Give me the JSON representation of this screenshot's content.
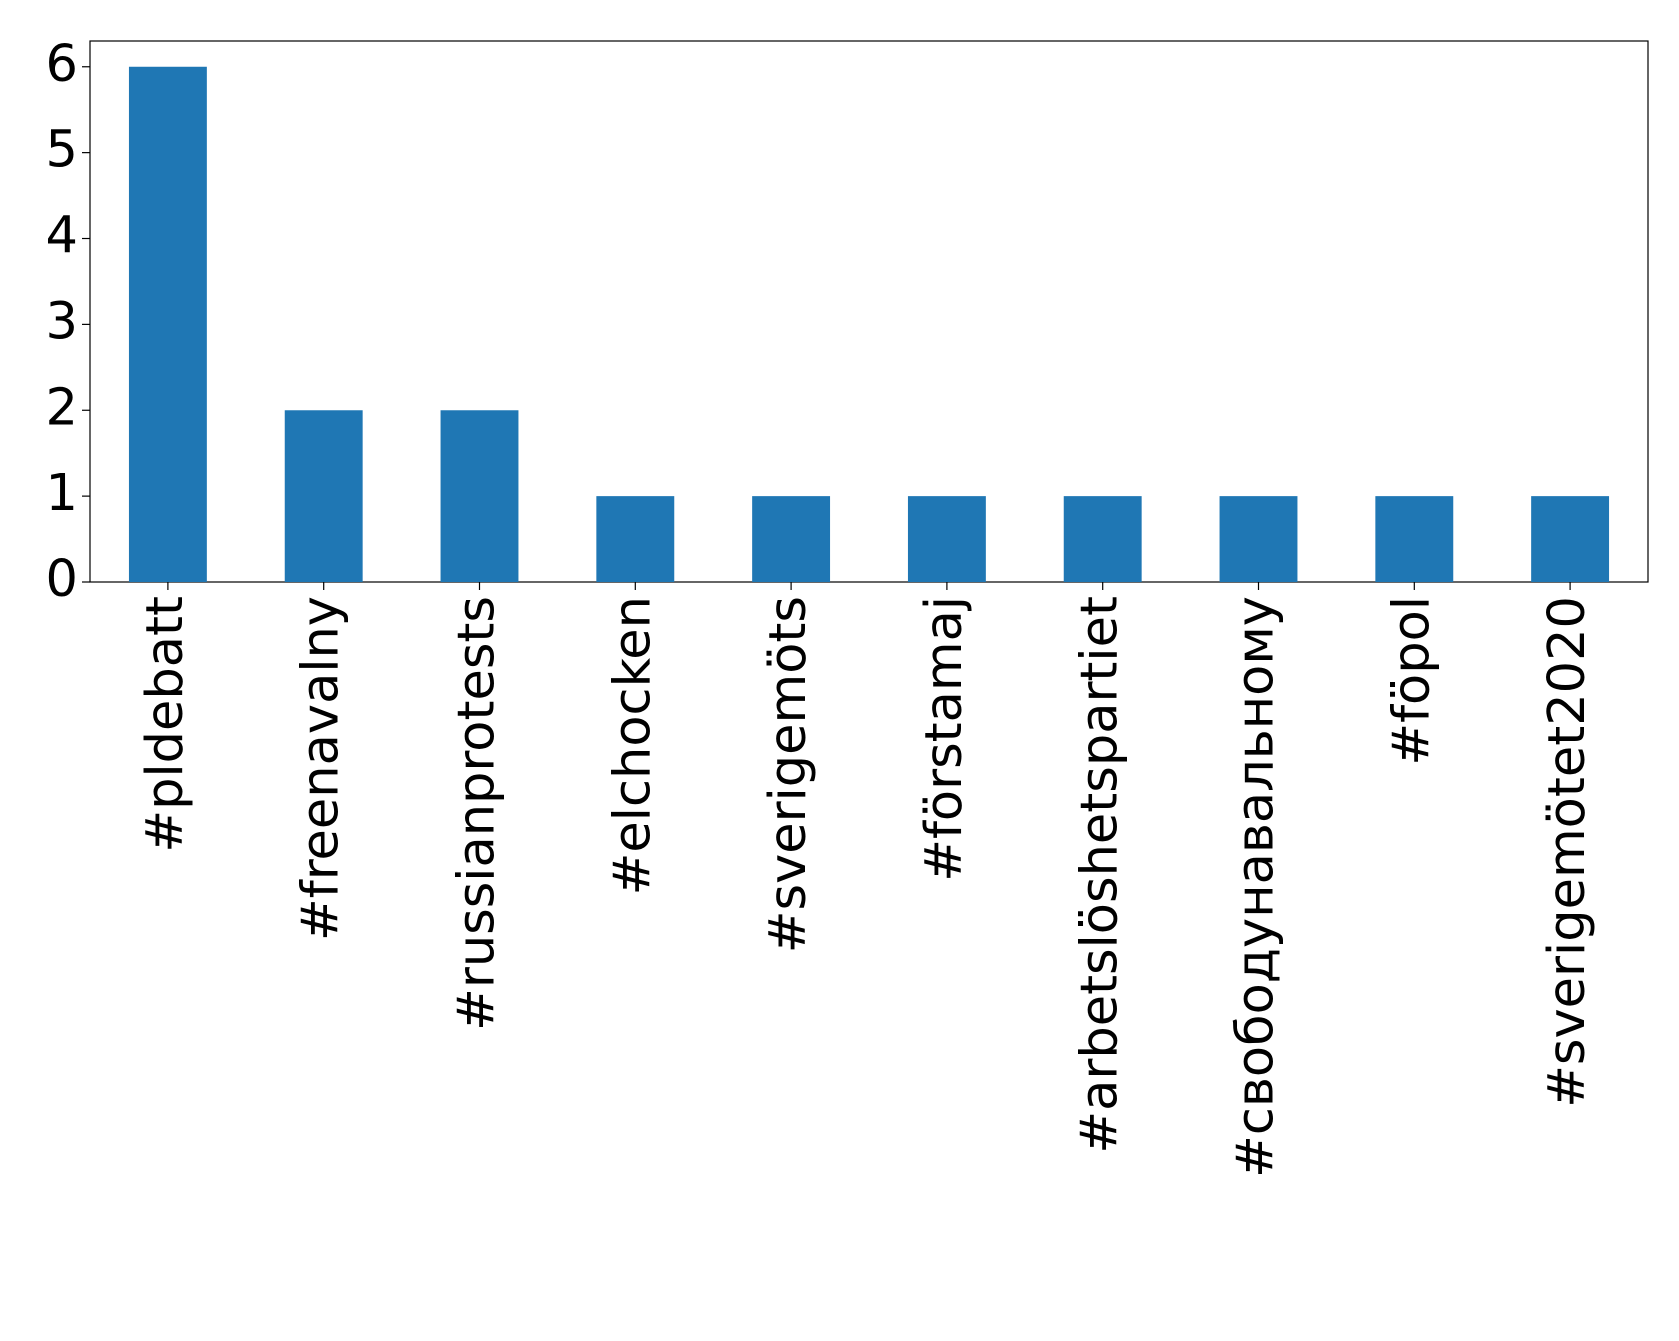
{
  "chart_data": {
    "type": "bar",
    "categories": [
      "#pldebatt",
      "#freenavalny",
      "#russianprotests",
      "#elchocken",
      "#sverigemöts",
      "#förstamaj",
      "#arbetslöshetspartiet",
      "#свободунавальному",
      "#föpol",
      "#sverigemötet2020"
    ],
    "values": [
      6,
      2,
      2,
      1,
      1,
      1,
      1,
      1,
      1,
      1
    ],
    "color": "#1f77b4",
    "ylim": [
      0,
      6.3
    ],
    "yticks": [
      0,
      1,
      2,
      3,
      4,
      5,
      6
    ],
    "grid": false
  }
}
